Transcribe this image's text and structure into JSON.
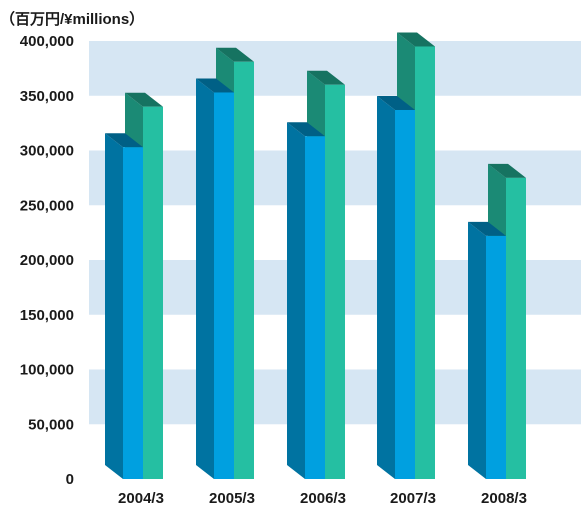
{
  "chart_data": {
    "type": "bar",
    "unit_label": "（百万円/¥millions）",
    "categories": [
      "2004/3",
      "2005/3",
      "2006/3",
      "2007/3",
      "2008/3"
    ],
    "series": [
      {
        "values": [
          303000,
          353000,
          313000,
          337000,
          222000
        ],
        "color": "#00a0e0"
      },
      {
        "values": [
          340000,
          381000,
          360000,
          395000,
          275000
        ],
        "color": "#25bfa2"
      }
    ],
    "ylim": [
      0,
      400000
    ],
    "yticks": [
      "0",
      "50,000",
      "100,000",
      "150,000",
      "200,000",
      "250,000",
      "300,000",
      "350,000",
      "400,000"
    ],
    "band_color": "#d6e6f3",
    "grid": true
  }
}
